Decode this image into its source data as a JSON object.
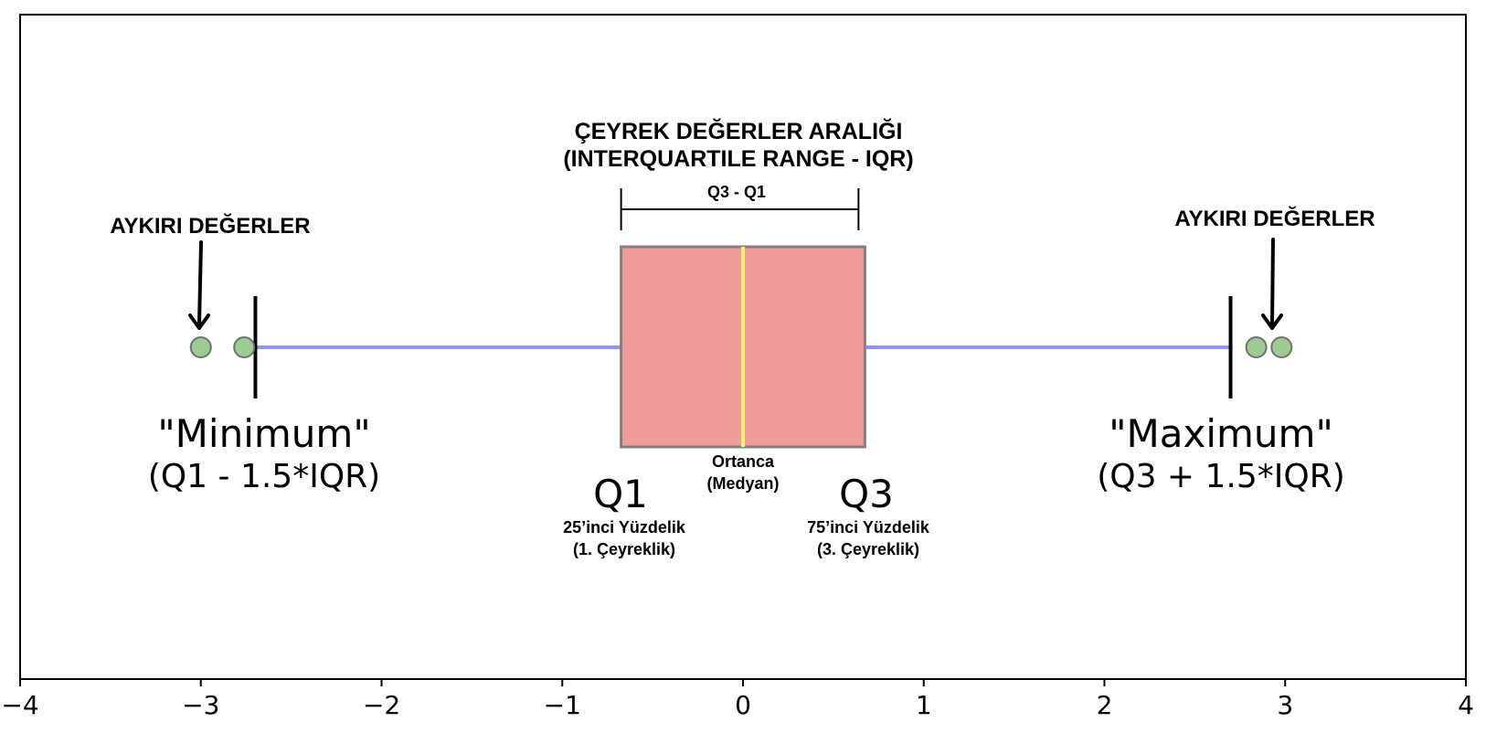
{
  "chart_data": {
    "type": "boxplot",
    "title": "",
    "xlabel": "",
    "ylabel": "",
    "xlim": [
      -4,
      4
    ],
    "xticks": [
      -4,
      -3,
      -2,
      -1,
      0,
      1,
      2,
      3,
      4
    ],
    "xtick_labels": [
      "−4",
      "−3",
      "−2",
      "−1",
      "0",
      "1",
      "2",
      "3",
      "4"
    ],
    "grid": false,
    "box": {
      "q1": -0.6745,
      "median": 0,
      "q3": 0.6745
    },
    "whiskers": {
      "min": -2.698,
      "max": 2.698
    },
    "outliers": [
      -3.0,
      -2.76,
      2.84,
      2.98
    ],
    "colors": {
      "box_fill": "#f09c9a",
      "box_edge": "#808080",
      "median": "#fff266",
      "whisker": "#8f95e8",
      "cap": "#000000",
      "outlier_fill": "#9ccb94",
      "outlier_edge": "#707070"
    },
    "annotations": {
      "iqr_title_line1": "ÇEYREK DEĞERLER ARALIĞI",
      "iqr_title_line2": "(INTERQUARTILE RANGE - IQR)",
      "iqr_formula": "Q3 - Q1",
      "outliers_left": "AYKIRI DEĞERLER",
      "outliers_right": "AYKIRI DEĞERLER",
      "min_title": "\"Minimum\"",
      "min_formula": "(Q1 - 1.5*IQR)",
      "max_title": "\"Maximum\"",
      "max_formula": "(Q3 + 1.5*IQR)",
      "q1_title": "Q1",
      "q1_line1": "25’inci Yüzdelik",
      "q1_line2": "(1. Çeyreklik)",
      "q3_title": "Q3",
      "q3_line1": "75’inci Yüzdelik",
      "q3_line2": "(3. Çeyreklik)",
      "median_line1": "Ortanca",
      "median_line2": "(Medyan)"
    }
  }
}
